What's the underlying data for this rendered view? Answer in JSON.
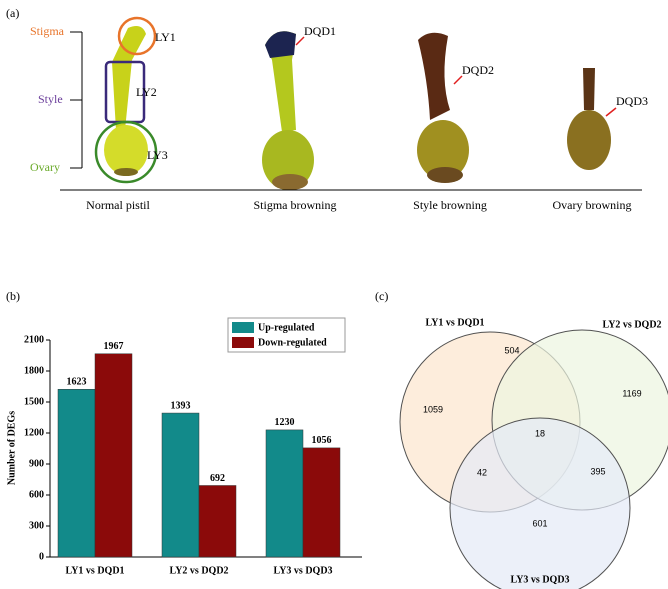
{
  "panel_a": {
    "label": "(a)",
    "parts": [
      "Stigma",
      "Style",
      "Ovary"
    ],
    "regions": [
      "LY1",
      "LY2",
      "LY3"
    ],
    "samples": [
      "DQD1",
      "DQD2",
      "DQD3"
    ],
    "captions": [
      "Normal pistil",
      "Stigma browning",
      "Style browning",
      "Ovary browning"
    ]
  },
  "chart_data": {
    "type": "bar",
    "panel": "(b)",
    "y_label": "Number of DEGs",
    "categories": [
      "LY1 vs DQD1",
      "LY2 vs DQD2",
      "LY3 vs DQD3"
    ],
    "series": [
      {
        "name": "Up-regulated",
        "color": "#128a8a",
        "values": [
          1623,
          1393,
          1230
        ]
      },
      {
        "name": "Down-regulated",
        "color": "#8b0a0a",
        "values": [
          1967,
          692,
          1056
        ]
      }
    ],
    "ylim": [
      0,
      2100
    ],
    "yticks": [
      0,
      300,
      600,
      900,
      1200,
      1500,
      1800,
      2100
    ],
    "legend": "upper right"
  },
  "venn": {
    "panel": "(c)",
    "sets": [
      "LY1 vs DQD1",
      "LY2 vs DQD2",
      "LY3 vs DQD3"
    ],
    "regions": [
      1059,
      504,
      1169,
      18,
      42,
      395,
      601
    ]
  }
}
